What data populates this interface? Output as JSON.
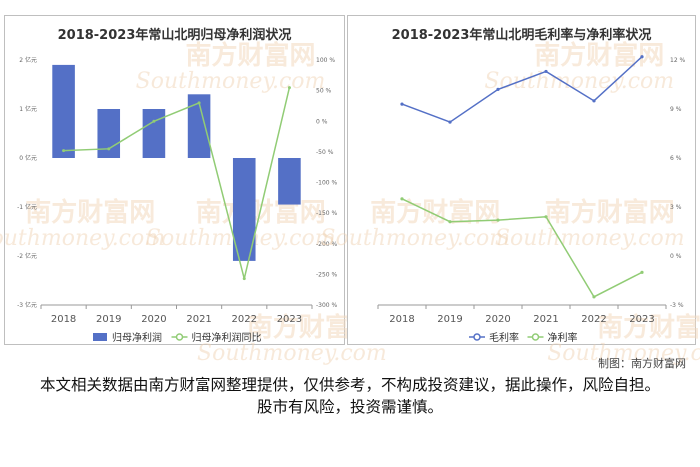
{
  "watermark": {
    "cn": "南方财富网",
    "en": "Southmoney.com"
  },
  "credit": "制图：南方财富网",
  "disclaimer": "本文相关数据由南方财富网整理提供，仅供参考，不构成投资建议，据此操作，风险自担。股市有风险，投资需谨慎。",
  "colors": {
    "bar": "#5470c6",
    "green": "#91cc75",
    "blue": "#5470c6"
  },
  "chart_data": [
    {
      "type": "bar",
      "title": "2018-2023年常山北明归母净利润状况",
      "categories": [
        "2018",
        "2019",
        "2020",
        "2021",
        "2022",
        "2023"
      ],
      "y_ticks": [
        "2 亿元",
        "1 亿元",
        "0 亿元",
        "-1 亿元",
        "-2 亿元",
        "-3 亿元"
      ],
      "y2_ticks": [
        "100 %",
        "50 %",
        "0 %",
        "-50 %",
        "-100 %",
        "-150 %",
        "-200 %",
        "-250 %",
        "-300 %"
      ],
      "ylim": [
        -3,
        2
      ],
      "y2lim": [
        -300,
        100
      ],
      "series": [
        {
          "name": "归母净利润",
          "kind": "bar",
          "axis": "left",
          "values": [
            1.9,
            1.0,
            1.0,
            1.3,
            -2.1,
            -0.95
          ]
        },
        {
          "name": "归母净利润同比",
          "kind": "line",
          "axis": "right",
          "values": [
            -48,
            -45,
            0,
            30,
            -257,
            55
          ]
        }
      ]
    },
    {
      "type": "line",
      "title": "2018-2023年常山北明毛利率与净利率状况",
      "categories": [
        "2018",
        "2019",
        "2020",
        "2021",
        "2022",
        "2023"
      ],
      "y2_ticks": [
        "12 %",
        "9 %",
        "6 %",
        "3 %",
        "0 %",
        "-3 %"
      ],
      "ylim": [
        -3,
        12
      ],
      "series": [
        {
          "name": "毛利率",
          "values": [
            9.3,
            8.2,
            10.2,
            11.3,
            9.5,
            12.2
          ]
        },
        {
          "name": "净利率",
          "values": [
            3.5,
            2.1,
            2.2,
            2.4,
            -2.5,
            -1.0
          ]
        }
      ]
    }
  ]
}
